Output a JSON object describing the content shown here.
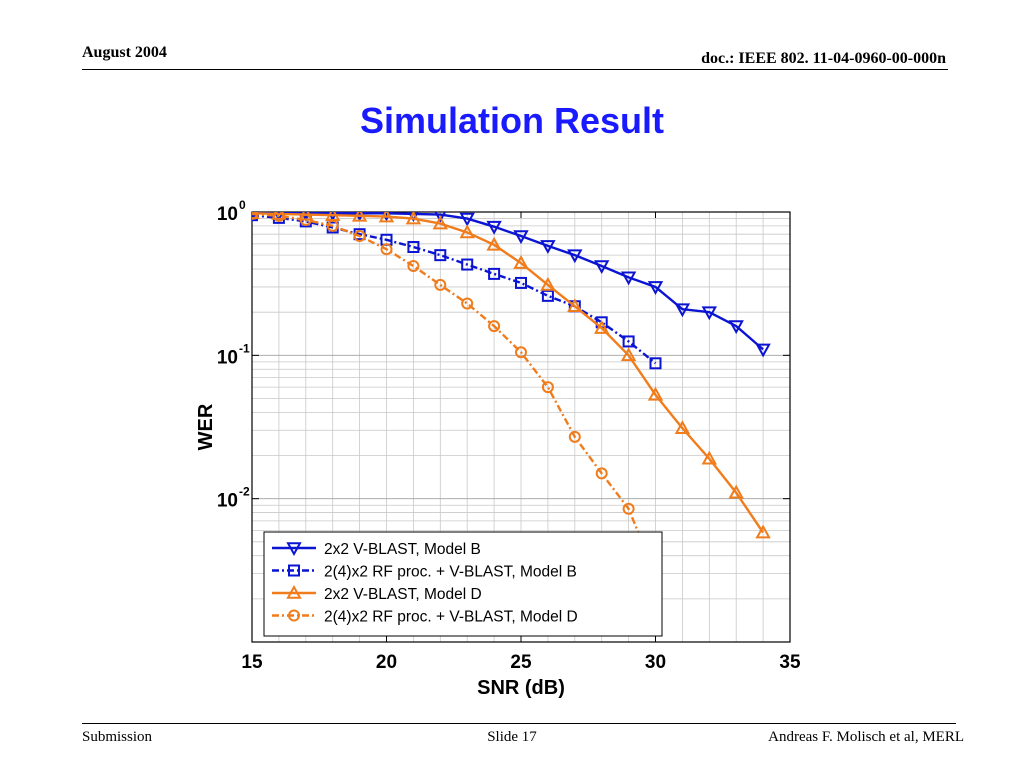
{
  "header": {
    "date": "August 2004",
    "doc": "doc.: IEEE 802. 11-04-0960-00-000n"
  },
  "slide_title": "Simulation Result",
  "footer": {
    "left": "Submission",
    "center": "Slide 17",
    "right": "Andreas F. Molisch et al, MERL"
  },
  "chart_data": {
    "type": "line",
    "title": "",
    "xlabel": "SNR (dB)",
    "ylabel": "WER",
    "xlim": [
      15,
      35
    ],
    "ylim": [
      0.001,
      1
    ],
    "yscale": "log",
    "grid": true,
    "legend_position": "bottom-left",
    "xticks": [
      15,
      20,
      25,
      30,
      35
    ],
    "xtick_labels": [
      "15",
      "20",
      "25",
      "30",
      "35"
    ],
    "yticks": [
      1,
      0.1,
      0.01
    ],
    "ytick_base": [
      "10",
      "10",
      "10"
    ],
    "ytick_exp": [
      "0",
      "-1",
      "-2"
    ],
    "series": [
      {
        "name": "2x2 V-BLAST, Model B",
        "color": "#0a14d2",
        "marker": "triangle-down",
        "dash": "solid",
        "x": [
          15,
          16,
          17,
          18,
          19,
          20,
          21,
          22,
          23,
          24,
          25,
          26,
          27,
          28,
          29,
          30,
          31,
          32,
          33,
          34
        ],
        "y": [
          0.98,
          0.98,
          0.98,
          0.98,
          0.98,
          0.98,
          0.97,
          0.96,
          0.9,
          0.79,
          0.68,
          0.58,
          0.5,
          0.42,
          0.35,
          0.3,
          0.21,
          0.2,
          0.16,
          0.11
        ]
      },
      {
        "name": "2(4)x2 RF proc. + V-BLAST, Model B",
        "color": "#0a14d2",
        "marker": "square",
        "dash": "dashdot",
        "x": [
          15,
          16,
          17,
          18,
          19,
          20,
          21,
          22,
          23,
          24,
          25,
          26,
          27,
          28,
          29,
          30
        ],
        "y": [
          0.95,
          0.91,
          0.86,
          0.78,
          0.7,
          0.64,
          0.57,
          0.5,
          0.43,
          0.37,
          0.32,
          0.26,
          0.22,
          0.17,
          0.125,
          0.088
        ]
      },
      {
        "name": "2x2 V-BLAST, Model D",
        "color": "#f07c1c",
        "marker": "triangle-up",
        "dash": "solid",
        "x": [
          15,
          16,
          17,
          18,
          19,
          20,
          21,
          22,
          23,
          24,
          25,
          26,
          27,
          28,
          29,
          30,
          31,
          32,
          33,
          34
        ],
        "y": [
          0.98,
          0.97,
          0.96,
          0.95,
          0.94,
          0.93,
          0.9,
          0.83,
          0.72,
          0.59,
          0.44,
          0.31,
          0.22,
          0.155,
          0.1,
          0.053,
          0.031,
          0.019,
          0.011,
          0.0058
        ]
      },
      {
        "name": "2(4)x2 RF proc. + V-BLAST, Model D",
        "color": "#f07c1c",
        "marker": "circle",
        "dash": "dashdot",
        "x": [
          15,
          16,
          17,
          18,
          19,
          20,
          21,
          22,
          23,
          24,
          25,
          26,
          27,
          28,
          29,
          29.5
        ],
        "y": [
          0.97,
          0.94,
          0.88,
          0.8,
          0.68,
          0.55,
          0.42,
          0.31,
          0.23,
          0.16,
          0.105,
          0.06,
          0.027,
          0.015,
          0.0085,
          0.005
        ]
      }
    ]
  }
}
